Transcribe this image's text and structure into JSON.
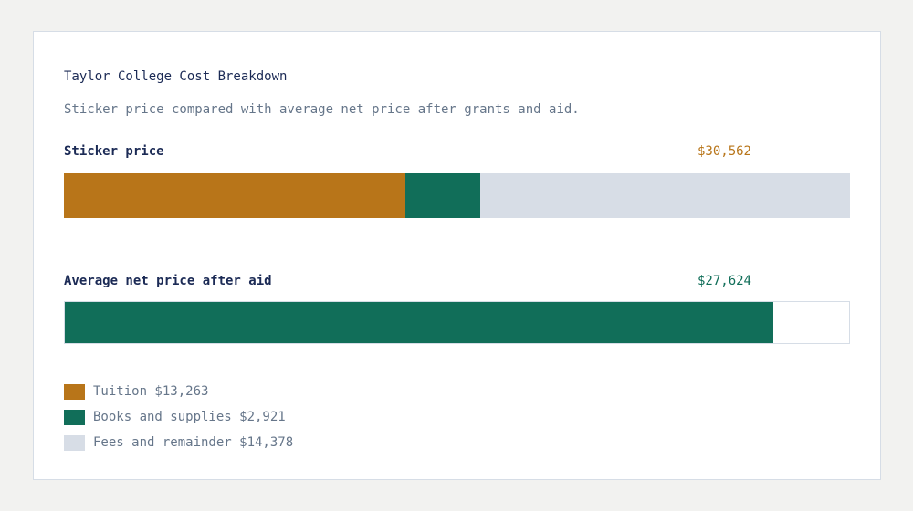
{
  "header": {
    "title": "Taylor College Cost Breakdown",
    "subtitle": "Sticker price compared with average net price after grants and aid."
  },
  "rows": {
    "sticker": {
      "label": "Sticker price",
      "value": "$30,562"
    },
    "net": {
      "label": "Average net price after aid",
      "value": "$27,624"
    }
  },
  "legend": [
    {
      "label": "Tuition $13,263",
      "color": "#b87519"
    },
    {
      "label": "Books and supplies $2,921",
      "color": "#116e59"
    },
    {
      "label": "Fees and remainder $14,378",
      "color": "#d7dde6"
    }
  ],
  "colors": {
    "tuition": "#b87519",
    "books": "#116e59",
    "fees": "#d7dde6",
    "title": "#1b2a55",
    "muted": "#66768a"
  },
  "chart_data": {
    "type": "bar",
    "orientation": "horizontal",
    "stacked": true,
    "title": "Taylor College Cost Breakdown",
    "subtitle": "Sticker price compared with average net price after grants and aid.",
    "categories": [
      "Sticker price",
      "Average net price after aid"
    ],
    "series": [
      {
        "name": "Tuition",
        "values": [
          13263,
          null
        ],
        "color": "#b87519"
      },
      {
        "name": "Books and supplies",
        "values": [
          2921,
          null
        ],
        "color": "#116e59"
      },
      {
        "name": "Fees and remainder",
        "values": [
          14378,
          null
        ],
        "color": "#d7dde6"
      },
      {
        "name": "Average net price",
        "values": [
          null,
          27624
        ],
        "color": "#116e59"
      }
    ],
    "totals": {
      "Sticker price": 30562,
      "Average net price after aid": 27624
    },
    "xlim": [
      0,
      30562
    ],
    "grid": false,
    "legend_position": "bottom-left",
    "legend": [
      "Tuition $13,263",
      "Books and supplies $2,921",
      "Fees and remainder $14,378"
    ]
  }
}
